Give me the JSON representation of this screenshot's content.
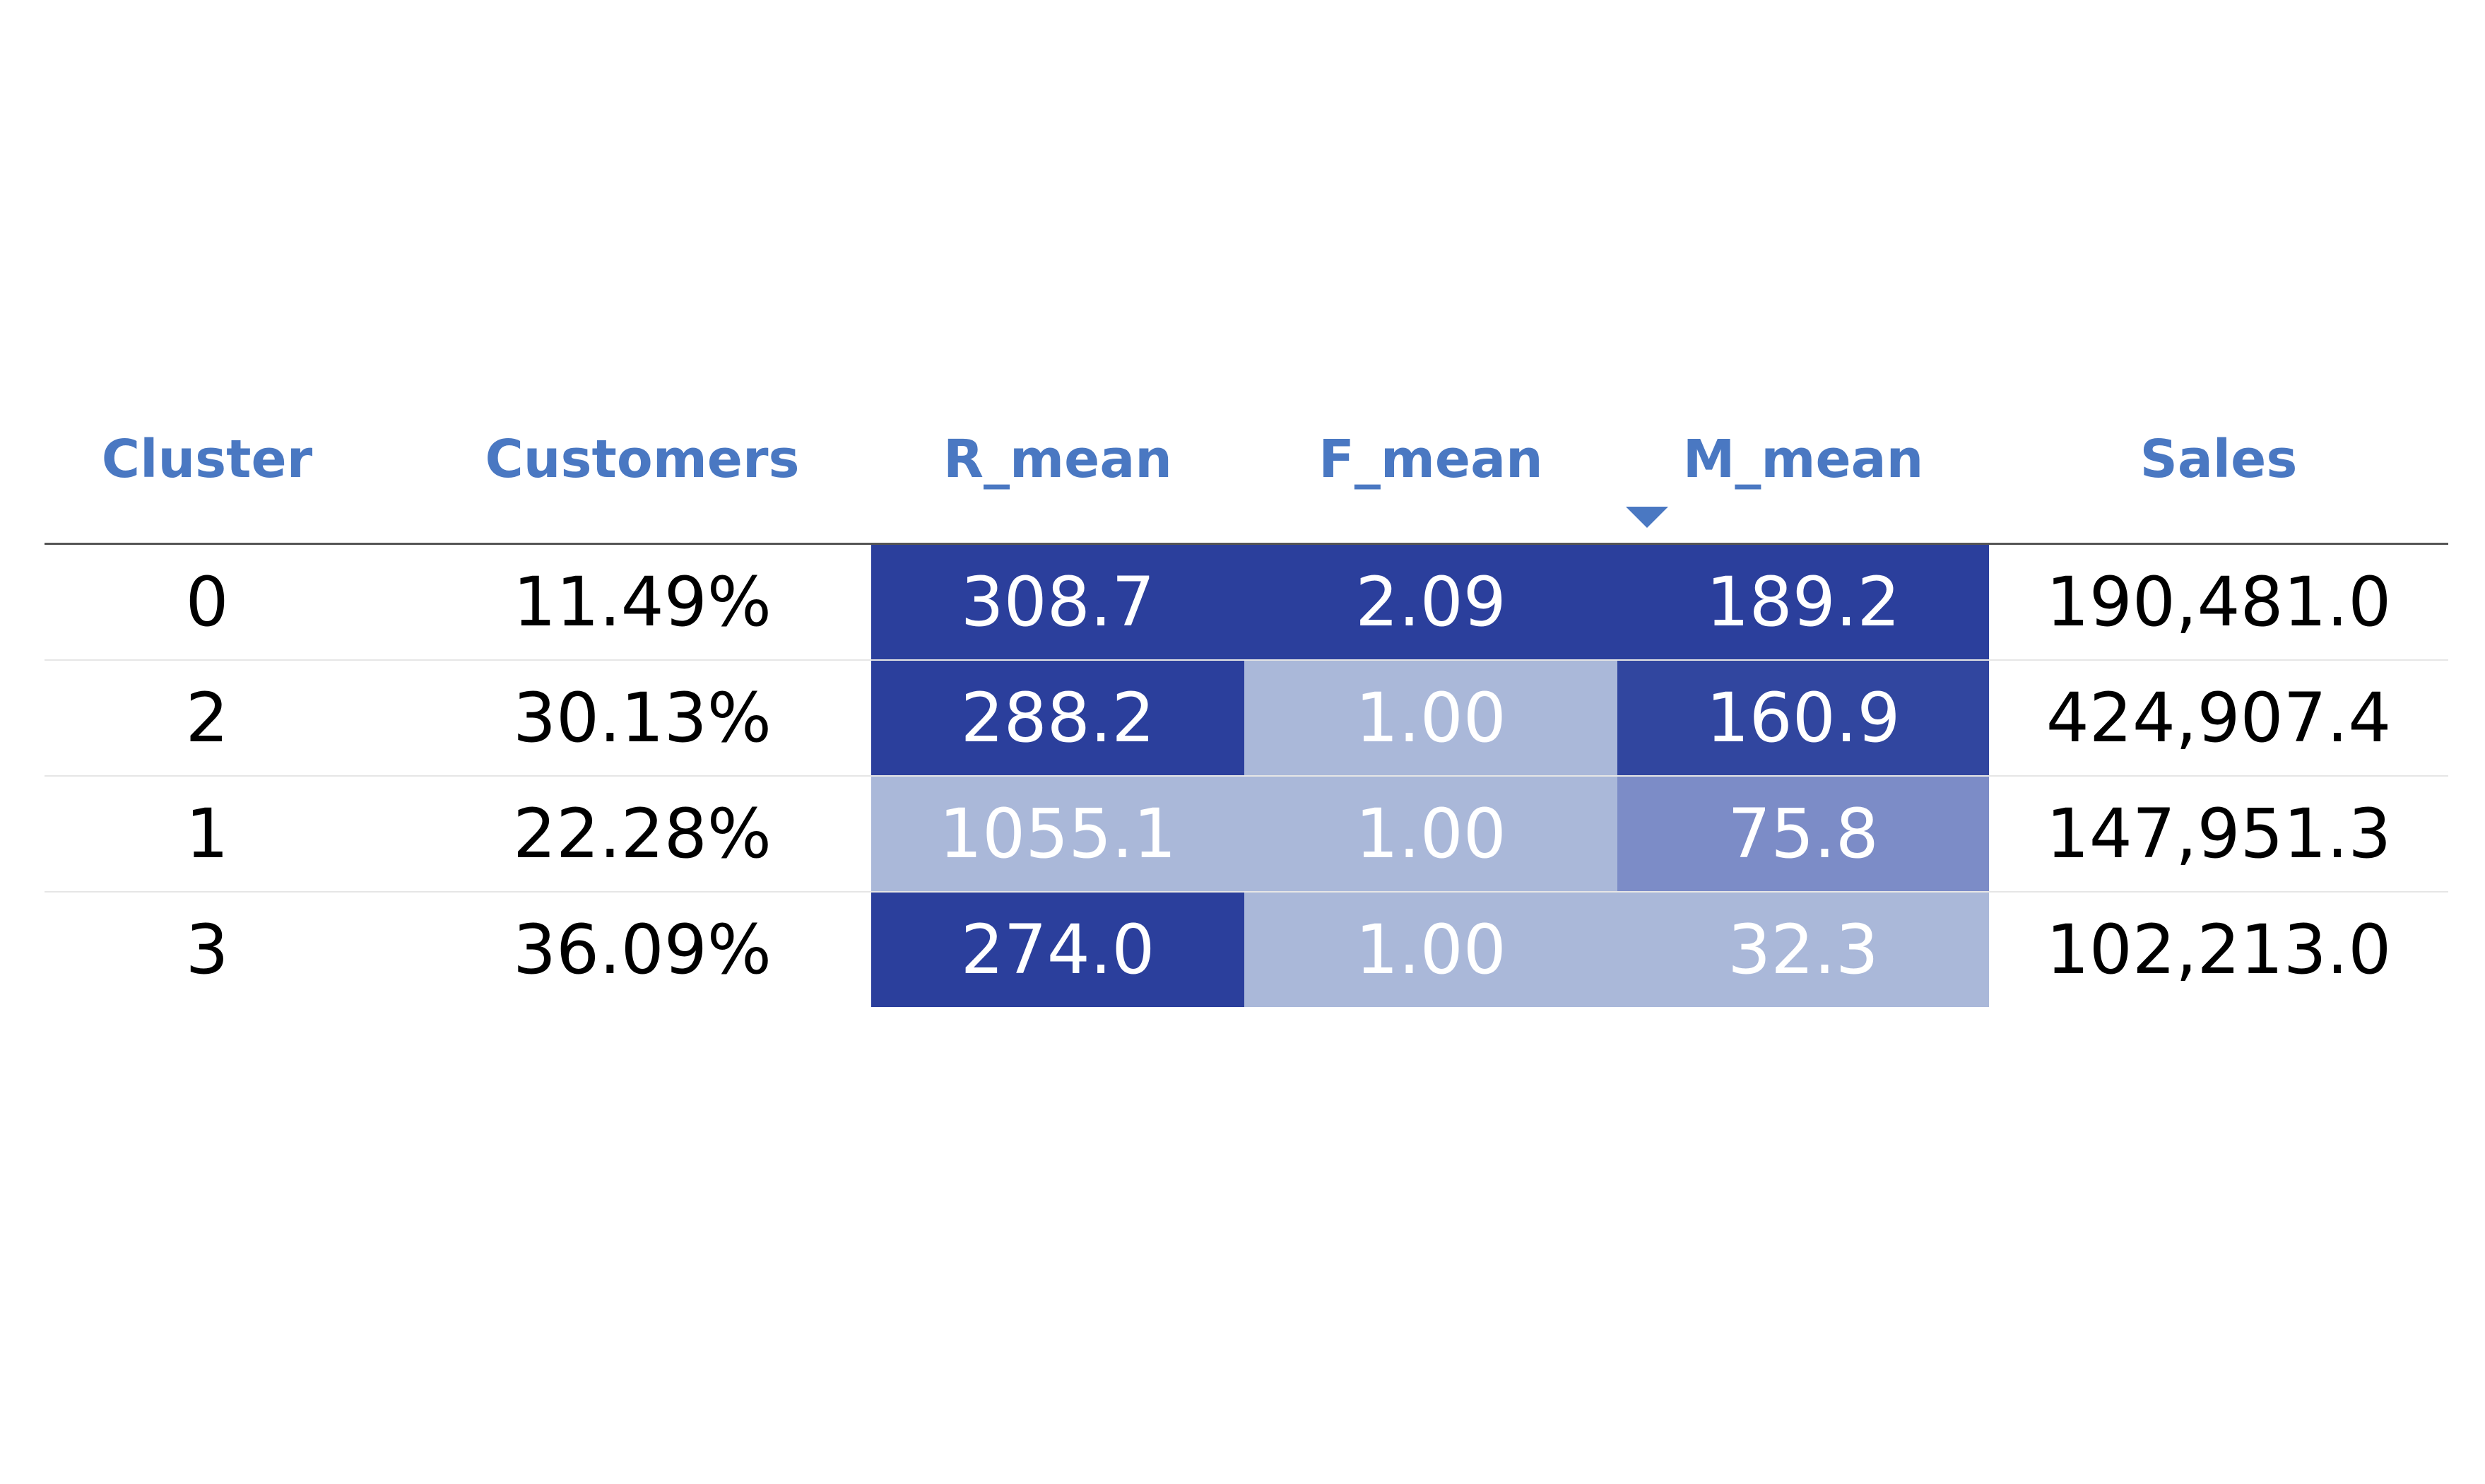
{
  "table": {
    "columns": [
      "Cluster",
      "Customers",
      "R_mean",
      "F_mean",
      "M_mean",
      "Sales"
    ],
    "sorted_column": "M_mean",
    "sort_direction": "descending",
    "rows": [
      {
        "cluster": "0",
        "customers": "11.49%",
        "r_mean": "308.7",
        "f_mean": "2.09",
        "m_mean": "189.2",
        "sales": "190,481.0",
        "r_color": "#2b3f9c",
        "f_color": "#2b3f9c",
        "m_color": "#2b3f9c"
      },
      {
        "cluster": "2",
        "customers": "30.13%",
        "r_mean": "288.2",
        "f_mean": "1.00",
        "m_mean": "160.9",
        "sales": "424,907.4",
        "r_color": "#2b3f9c",
        "f_color": "#aab8d9",
        "m_color": "#31469f"
      },
      {
        "cluster": "1",
        "customers": "22.28%",
        "r_mean": "1055.1",
        "f_mean": "1.00",
        "m_mean": "75.8",
        "sales": "147,951.3",
        "r_color": "#aab8d9",
        "f_color": "#aab8d9",
        "m_color": "#7c8cc7"
      },
      {
        "cluster": "3",
        "customers": "36.09%",
        "r_mean": "274.0",
        "f_mean": "1.00",
        "m_mean": "32.3",
        "sales": "102,213.0",
        "r_color": "#2b3f9c",
        "f_color": "#aab8d9",
        "m_color": "#aab8d9"
      }
    ]
  },
  "colors": {
    "header_text": "#4a78c2",
    "heat_dark": "#2b3f9c",
    "heat_light": "#aab8d9"
  }
}
